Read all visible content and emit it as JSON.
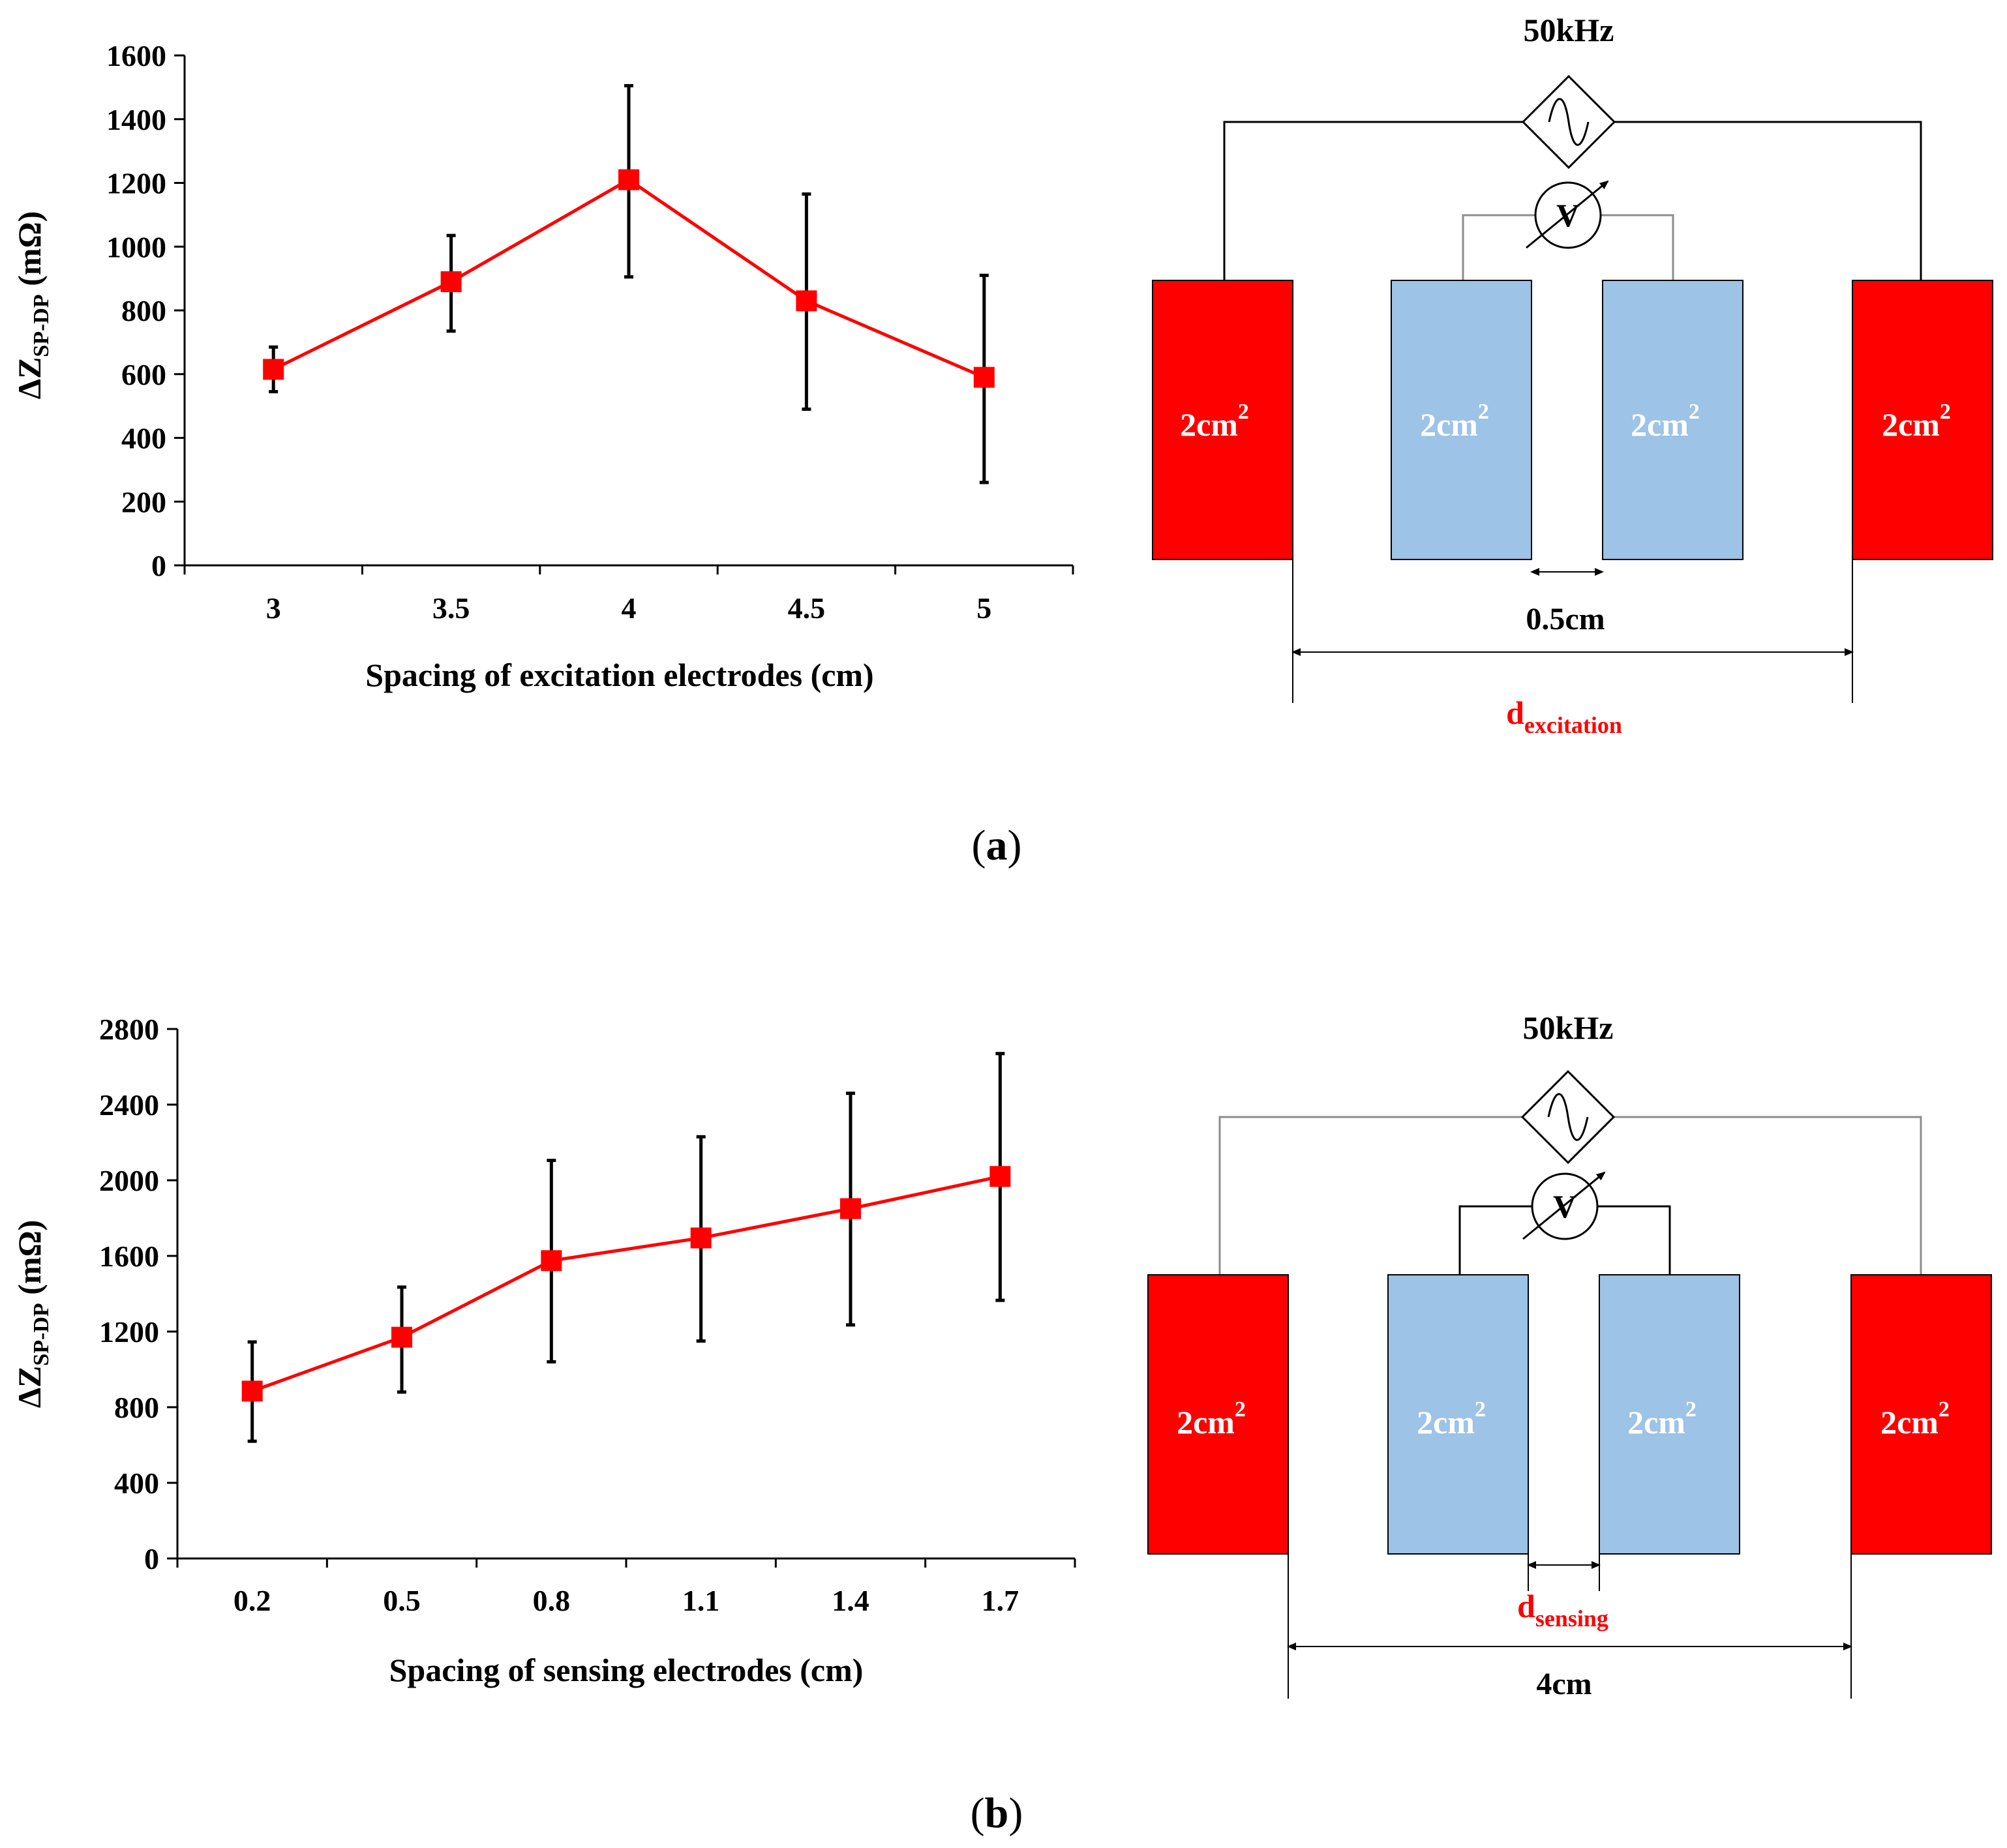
{
  "colors": {
    "series": "#ff0000",
    "excitation_electrode": "#ff0000",
    "sensing_electrode": "#9dc3e6",
    "wire": "#000000",
    "errorbar": "#000000"
  },
  "chart_data": [
    {
      "id": "a",
      "type": "line",
      "panel_label": "a",
      "xlabel": "Spacing of excitation electrodes (cm)",
      "ylabel_main": "ΔZ",
      "ylabel_sub": "SP-DP",
      "ylabel_unit": " (mΩ)",
      "categories": [
        "3",
        "3.5",
        "4",
        "4.5",
        "5"
      ],
      "x": [
        3,
        3.5,
        4,
        4.5,
        5
      ],
      "values": [
        615,
        890,
        1210,
        830,
        590
      ],
      "error_low": [
        545,
        735,
        905,
        490,
        260
      ],
      "error_high": [
        685,
        1035,
        1505,
        1165,
        910
      ],
      "ylim": [
        0,
        1600
      ],
      "yticks": [
        "0",
        "200",
        "400",
        "600",
        "800",
        "1000",
        "1200",
        "1400",
        "1600"
      ],
      "marker": "square",
      "grid": false,
      "legend": "none"
    },
    {
      "id": "b",
      "type": "line",
      "panel_label": "b",
      "xlabel": "Spacing of sensing electrodes (cm)",
      "ylabel_main": "ΔZ",
      "ylabel_sub": "SP-DP",
      "ylabel_unit": " (mΩ)",
      "categories": [
        "0.2",
        "0.5",
        "0.8",
        "1.1",
        "1.4",
        "1.7"
      ],
      "x": [
        0.2,
        0.5,
        0.8,
        1.1,
        1.4,
        1.7
      ],
      "values": [
        885,
        1170,
        1575,
        1695,
        1850,
        2020
      ],
      "error_low": [
        620,
        880,
        1040,
        1150,
        1235,
        1365
      ],
      "error_high": [
        1145,
        1435,
        2105,
        2230,
        2460,
        2670
      ],
      "ylim": [
        0,
        2800
      ],
      "yticks": [
        "0",
        "400",
        "800",
        "1200",
        "1600",
        "2000",
        "2400",
        "2800"
      ],
      "marker": "square",
      "grid": false,
      "legend": "none"
    }
  ],
  "diagrams": [
    {
      "id": "a",
      "frequency": "50kHz",
      "voltmeter": "V",
      "electrode_label": "2cm",
      "electrode_sup": "2",
      "inner_gap_label": "0.5cm",
      "outer_gap_var": "d",
      "outer_gap_sub": "excitation"
    },
    {
      "id": "b",
      "frequency": "50kHz",
      "voltmeter": "V",
      "electrode_label": "2cm",
      "electrode_sup": "2",
      "inner_gap_var": "d",
      "inner_gap_sub": "sensing",
      "outer_gap_label": "4cm"
    }
  ],
  "panel_labels": {
    "a": {
      "open": "(",
      "letter": "a",
      "close": ")"
    },
    "b": {
      "open": "(",
      "letter": "b",
      "close": ")"
    }
  }
}
